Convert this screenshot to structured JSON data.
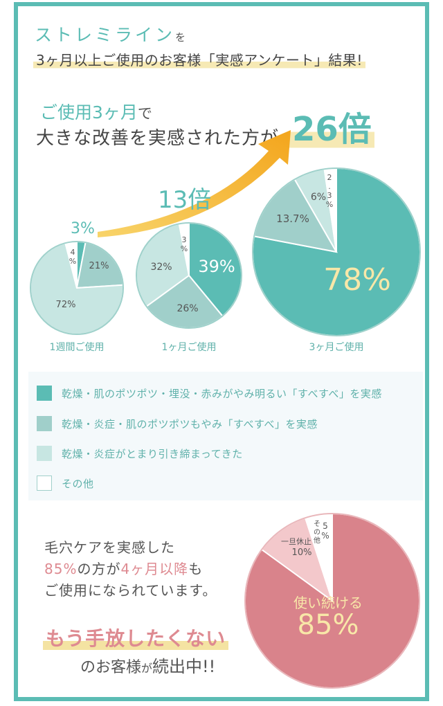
{
  "header": {
    "line1_main": "ストレミライン",
    "line1_particle": "を",
    "line2": "3ヶ月以上ご使用のお客様「実感アンケート」結果!"
  },
  "headline": {
    "prefix": "ご使用3ヶ月",
    "prefix_suffix": "で",
    "line2": "大きな改善を実感された方が",
    "multiplier": "26倍"
  },
  "annotations": {
    "start_value": "3%",
    "mid_multiplier": "13倍"
  },
  "colors": {
    "frame": "#5bbcb4",
    "teal_dark": "#5bbcb4",
    "teal_mid": "#a0cfca",
    "teal_light": "#c7e6e2",
    "other": "#ffffff",
    "arrow": "#f6b82a",
    "highlight": "#f6e9b4",
    "pink": "#d9838b",
    "pink_light": "#f3c8cb",
    "number_yellow": "#f8e7a8"
  },
  "chart_data": [
    {
      "type": "pie",
      "title": "1週間ご使用",
      "slices": [
        {
          "label": "乾燥・肌のポツポツ・埋没・赤みがやみ明るい「すべすべ」を実感",
          "value": 3,
          "value_label": ""
        },
        {
          "label": "乾燥・炎症・肌のポツポツもやみ「すべすべ」を実感",
          "value": 21,
          "value_label": "21%"
        },
        {
          "label": "乾燥・炎症がとまり引き締まってきた",
          "value": 72,
          "value_label": "72%"
        },
        {
          "label": "その他",
          "value": 4,
          "value_label": "4%"
        }
      ]
    },
    {
      "type": "pie",
      "title": "1ヶ月ご使用",
      "slices": [
        {
          "label": "乾燥・肌のポツポツ・埋没・赤みがやみ明るい「すべすべ」を実感",
          "value": 39,
          "value_label": "39%"
        },
        {
          "label": "乾燥・炎症・肌のポツポツもやみ「すべすべ」を実感",
          "value": 26,
          "value_label": "26%"
        },
        {
          "label": "乾燥・炎症がとまり引き締まってきた",
          "value": 32,
          "value_label": "32%"
        },
        {
          "label": "その他",
          "value": 3,
          "value_label": "3%"
        }
      ]
    },
    {
      "type": "pie",
      "title": "3ヶ月ご使用",
      "slices": [
        {
          "label": "乾燥・肌のポツポツ・埋没・赤みがやみ明るい「すべすべ」を実感",
          "value": 78,
          "value_label": "78%"
        },
        {
          "label": "乾燥・炎症・肌のポツポツもやみ「すべすべ」を実感",
          "value": 13.7,
          "value_label": "13.7%"
        },
        {
          "label": "乾燥・炎症がとまり引き締まってきた",
          "value": 6,
          "value_label": "6%"
        },
        {
          "label": "その他",
          "value": 2.3,
          "value_label": "2.3%"
        }
      ]
    },
    {
      "type": "pie",
      "title": "",
      "slices": [
        {
          "label": "使い続ける",
          "value": 85,
          "value_label": "85%"
        },
        {
          "label": "一旦休止",
          "value": 10,
          "value_label": "10%"
        },
        {
          "label": "その他",
          "value": 5,
          "value_label": "5%"
        }
      ]
    }
  ],
  "legend": [
    {
      "label": "乾燥・肌のポツポツ・埋没・赤みがやみ明るい「すべすべ」を実感",
      "color": "#5bbcb4"
    },
    {
      "label": "乾燥・炎症・肌のポツポツもやみ「すべすべ」を実感",
      "color": "#a0cfca"
    },
    {
      "label": "乾燥・炎症がとまり引き締まってきた",
      "color": "#c7e6e2"
    },
    {
      "label": "その他",
      "color": "#ffffff"
    }
  ],
  "retention": {
    "line1": "毛穴ケアを実感した",
    "line2_pct": "85%",
    "line2_mid": "の方が",
    "line2_months": "4ヶ月以降",
    "line2_end": "も",
    "line3": "ご使用になられています。",
    "callout": "もう手放したくない",
    "footer_pre": "のお客様",
    "footer_small": "が",
    "footer_end": "続出中!!"
  }
}
